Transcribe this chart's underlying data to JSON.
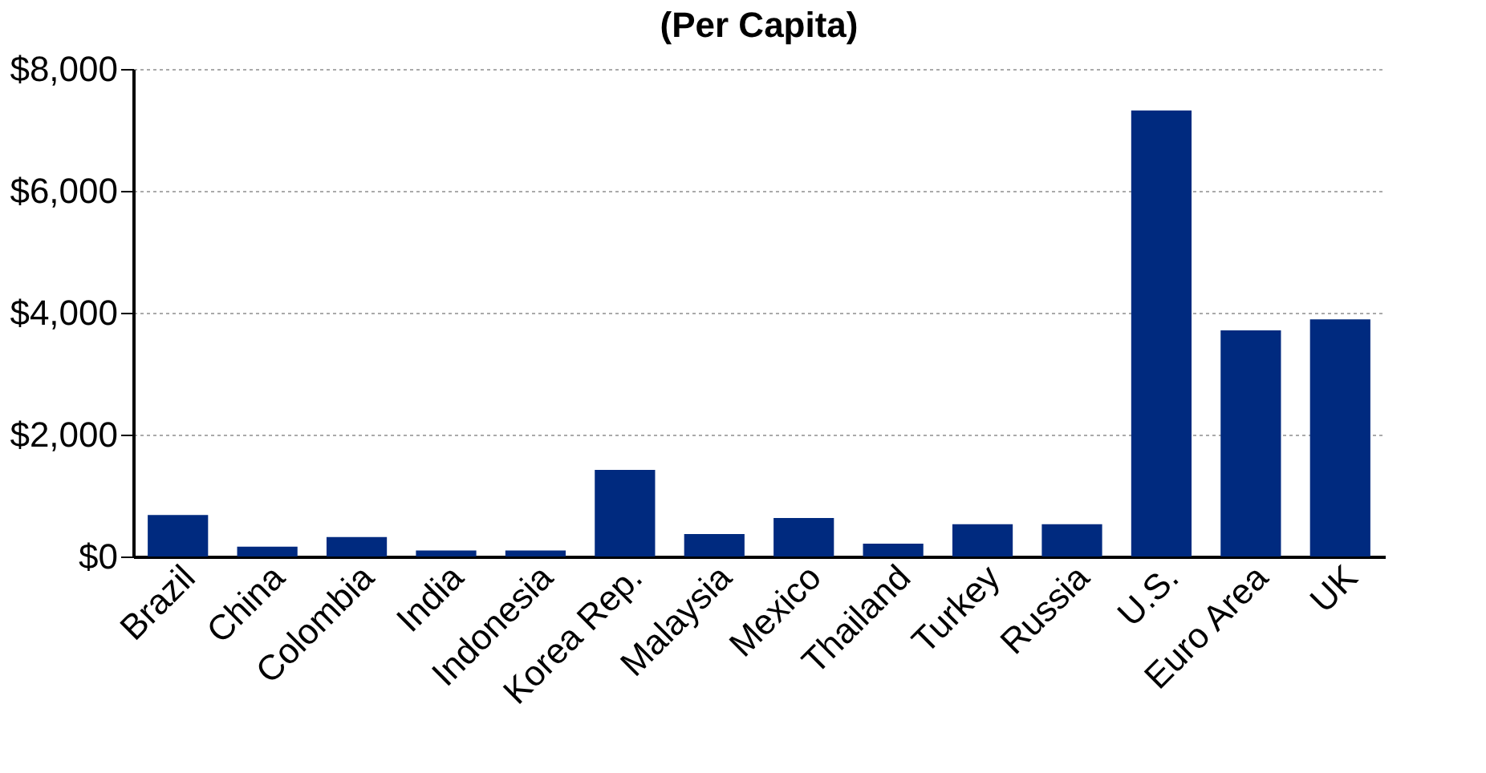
{
  "chart_data": {
    "type": "bar",
    "title": "(Per Capita)",
    "categories": [
      "Brazil",
      "China",
      "Colombia",
      "India",
      "Indonesia",
      "Korea Rep.",
      "Malaysia",
      "Mexico",
      "Thailand",
      "Turkey",
      "Russia",
      "U.S.",
      "Euro Area",
      "UK"
    ],
    "values": [
      680,
      160,
      320,
      100,
      100,
      1420,
      370,
      630,
      210,
      530,
      530,
      7320,
      3710,
      3890
    ],
    "color": "#002a7f",
    "ylim": [
      0,
      8000
    ],
    "yticks": [
      {
        "value": 0,
        "label": "$0"
      },
      {
        "value": 2000,
        "label": "$2,000"
      },
      {
        "value": 4000,
        "label": "$4,000"
      },
      {
        "value": 6000,
        "label": "$6,000"
      },
      {
        "value": 8000,
        "label": "$8,000"
      }
    ],
    "grid": "y"
  }
}
